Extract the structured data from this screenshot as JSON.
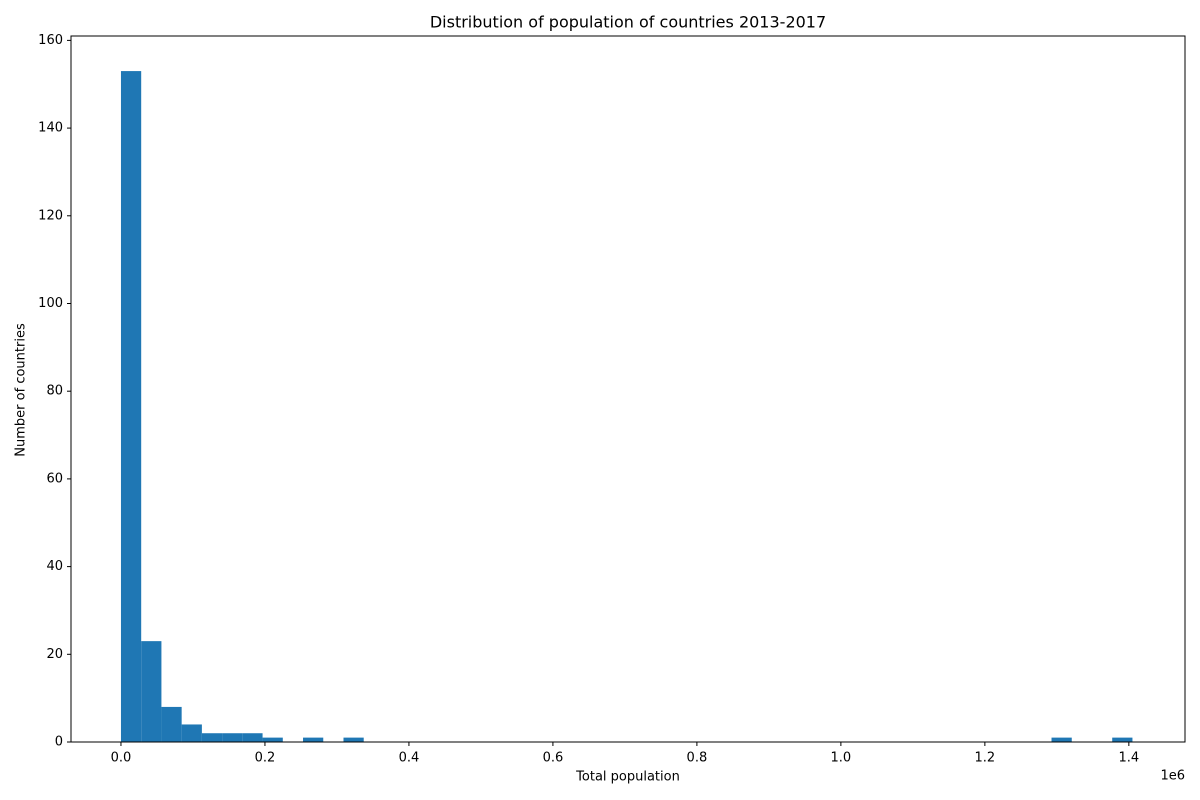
{
  "chart_data": {
    "type": "histogram",
    "title": "Distribution of population of countries 2013-2017",
    "x_label": "Total population",
    "y_label": "Number of countries",
    "x_offset_label": "1e6",
    "color": "#1f77b4",
    "bins": [
      0,
      28100,
      56200,
      84300,
      112400,
      140500,
      168600,
      196700,
      224800,
      252900,
      281000,
      309100,
      337200,
      365300,
      393400,
      421500,
      449600,
      477700,
      505800,
      533900,
      562000,
      590100,
      618200,
      646300,
      674400,
      702500,
      730600,
      758700,
      786800,
      814900,
      843000,
      871100,
      899200,
      927300,
      955400,
      983500,
      1011600,
      1039700,
      1067800,
      1095900,
      1124000,
      1152100,
      1180200,
      1208300,
      1236400,
      1264500,
      1292600,
      1320700,
      1348800,
      1376900,
      1405000
    ],
    "values": [
      153,
      23,
      8,
      4,
      2,
      2,
      2,
      1,
      0,
      1,
      0,
      1,
      0,
      0,
      0,
      0,
      0,
      0,
      0,
      0,
      0,
      0,
      0,
      0,
      0,
      0,
      0,
      0,
      0,
      0,
      0,
      0,
      0,
      0,
      0,
      0,
      0,
      0,
      0,
      0,
      0,
      0,
      0,
      0,
      0,
      0,
      1,
      0,
      0,
      1
    ],
    "xlim": [
      -69400,
      1478000
    ],
    "ylim": [
      0,
      161
    ],
    "xticks": [
      {
        "value": 0,
        "label": "0.0"
      },
      {
        "value": 200000,
        "label": "0.2"
      },
      {
        "value": 400000,
        "label": "0.4"
      },
      {
        "value": 600000,
        "label": "0.6"
      },
      {
        "value": 800000,
        "label": "0.8"
      },
      {
        "value": 1000000,
        "label": "1.0"
      },
      {
        "value": 1200000,
        "label": "1.2"
      },
      {
        "value": 1400000,
        "label": "1.4"
      }
    ],
    "yticks": [
      0,
      20,
      40,
      60,
      80,
      100,
      120,
      140,
      160
    ]
  }
}
